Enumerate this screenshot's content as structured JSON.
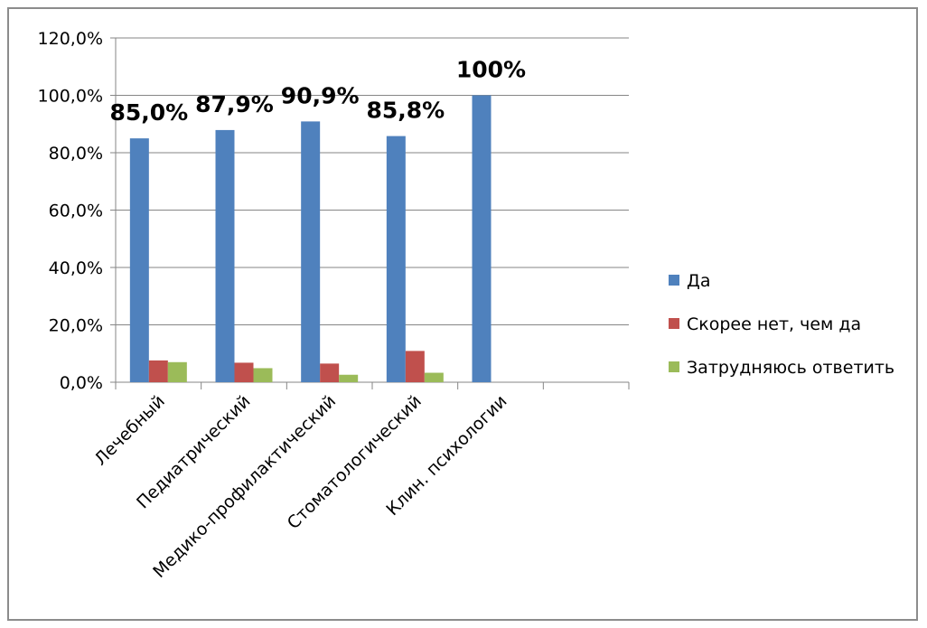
{
  "chart_data": {
    "type": "bar",
    "categories": [
      "Лечебный",
      "Педиатрический",
      "Медико-профилактический",
      "Стоматологический",
      "Клин. психологии"
    ],
    "series": [
      {
        "name": "Да",
        "values": [
          85.0,
          87.9,
          90.9,
          85.8,
          100
        ],
        "color": "#4f81bd"
      },
      {
        "name": "Скорее нет, чем да",
        "values": [
          7.6,
          6.8,
          6.5,
          10.9,
          null
        ],
        "color": "#c0504d"
      },
      {
        "name": "Затрудняюсь ответить",
        "values": [
          7.0,
          4.9,
          2.6,
          3.3,
          null
        ],
        "color": "#9bbb59"
      }
    ],
    "data_labels": [
      "85,0%",
      "87,9%",
      "90,9%",
      "85,8%",
      "100%"
    ],
    "y_ticks": [
      "0,0%",
      "20,0%",
      "40,0%",
      "60,0%",
      "80,0%",
      "100,0%",
      "120,0%"
    ],
    "ylim": [
      0,
      120
    ],
    "grid": true,
    "legend_position": "right",
    "title": "",
    "xlabel": "",
    "ylabel": ""
  }
}
